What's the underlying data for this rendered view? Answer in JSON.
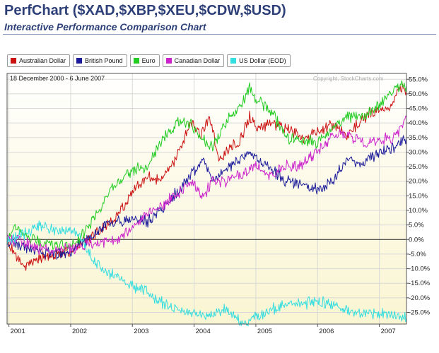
{
  "header": {
    "title": "PerfChart ($XAD,$XBP,$XEU,$CDW,$USD)",
    "subtitle": "Interactive Performance Comparison Chart"
  },
  "legend": [
    {
      "label": "Australian Dollar",
      "color": "#cc1111"
    },
    {
      "label": "British Pound",
      "color": "#1a1a9a"
    },
    {
      "label": "Euro",
      "color": "#22cc22"
    },
    {
      "label": "Canadian Dollar",
      "color": "#cc22cc"
    },
    {
      "label": "US Dollar (EOD)",
      "color": "#33dde0"
    }
  ],
  "date_range": "18 December 2000 - 6 June 2007",
  "copyright": "Copyright, StockCharts.com",
  "chart_data": {
    "type": "line",
    "ylim": [
      -29,
      57
    ],
    "xlim": [
      2000.97,
      2007.44
    ],
    "y_ticks": [
      55,
      50,
      45,
      40,
      35,
      30,
      25,
      20,
      15,
      10,
      5,
      0,
      -5,
      -10,
      -15,
      -20,
      -25
    ],
    "y_tick_labels": [
      "55.0%",
      "50.0%",
      "45.0%",
      "40.0%",
      "35.0%",
      "30.0%",
      "25.0%",
      "20.0%",
      "15.0%",
      "10.0%",
      "5.0%",
      "0.0%",
      "-5.0%",
      "-10.0%",
      "-15.0%",
      "-20.0%",
      "-25.0%"
    ],
    "x_ticks": [
      2001,
      2002,
      2003,
      2004,
      2005,
      2006,
      2007
    ],
    "x_tick_labels": [
      "2001",
      "2002",
      "2003",
      "2004",
      "2005",
      "2006",
      "2007"
    ],
    "grid": true,
    "legend_position": "top-left",
    "series": [
      {
        "name": "Australian Dollar",
        "color": "#cc1111",
        "x": [
          2000.97,
          2001.1,
          2001.25,
          2001.5,
          2001.75,
          2002.0,
          2002.25,
          2002.5,
          2002.75,
          2003.0,
          2003.25,
          2003.5,
          2003.75,
          2003.95,
          2004.1,
          2004.25,
          2004.4,
          2004.5,
          2004.75,
          2004.9,
          2005.0,
          2005.25,
          2005.5,
          2005.75,
          2006.0,
          2006.25,
          2006.5,
          2006.75,
          2007.0,
          2007.15,
          2007.3,
          2007.44
        ],
        "y": [
          0,
          -5,
          -10,
          -6,
          -5,
          -4,
          0,
          3,
          8,
          16,
          22,
          20,
          30,
          40,
          36,
          42,
          28,
          30,
          34,
          42,
          38,
          40,
          38,
          35,
          37,
          40,
          36,
          42,
          45,
          44,
          52,
          51
        ]
      },
      {
        "name": "British Pound",
        "color": "#1a1a9a",
        "x": [
          2000.97,
          2001.2,
          2001.5,
          2001.75,
          2002.0,
          2002.25,
          2002.5,
          2002.75,
          2003.0,
          2003.25,
          2003.5,
          2003.75,
          2003.95,
          2004.15,
          2004.3,
          2004.5,
          2004.75,
          2004.9,
          2005.0,
          2005.25,
          2005.5,
          2005.75,
          2006.0,
          2006.25,
          2006.5,
          2006.75,
          2007.0,
          2007.25,
          2007.44
        ],
        "y": [
          0,
          -2,
          -4,
          -5,
          -4,
          0,
          4,
          6,
          7,
          6,
          11,
          17,
          22,
          28,
          20,
          24,
          28,
          30,
          28,
          24,
          20,
          19,
          17,
          20,
          28,
          26,
          30,
          32,
          35
        ]
      },
      {
        "name": "Euro",
        "color": "#22cc22",
        "x": [
          2000.97,
          2001.1,
          2001.25,
          2001.5,
          2001.75,
          2002.0,
          2002.25,
          2002.5,
          2002.75,
          2003.0,
          2003.25,
          2003.5,
          2003.75,
          2003.95,
          2004.1,
          2004.3,
          2004.5,
          2004.75,
          2004.9,
          2005.0,
          2005.25,
          2005.5,
          2005.75,
          2006.0,
          2006.25,
          2006.5,
          2006.75,
          2007.0,
          2007.25,
          2007.44
        ],
        "y": [
          0,
          4,
          2,
          -1,
          -2,
          -2,
          3,
          12,
          20,
          24,
          25,
          35,
          40,
          40,
          35,
          32,
          40,
          46,
          52,
          48,
          44,
          35,
          34,
          33,
          39,
          42,
          42,
          46,
          52,
          53
        ]
      },
      {
        "name": "Canadian Dollar",
        "color": "#cc22cc",
        "x": [
          2000.97,
          2001.25,
          2001.5,
          2001.75,
          2002.0,
          2002.25,
          2002.5,
          2002.75,
          2003.0,
          2003.25,
          2003.5,
          2003.75,
          2003.95,
          2004.15,
          2004.3,
          2004.5,
          2004.75,
          2004.9,
          2005.0,
          2005.25,
          2005.5,
          2005.75,
          2006.0,
          2006.25,
          2006.5,
          2006.75,
          2007.0,
          2007.25,
          2007.44
        ],
        "y": [
          0,
          -1,
          -3,
          -4,
          -3,
          -2,
          -1,
          0,
          4,
          9,
          12,
          16,
          20,
          15,
          20,
          20,
          22,
          24,
          25,
          22,
          25,
          26,
          30,
          36,
          36,
          33,
          34,
          35,
          42
        ]
      },
      {
        "name": "US Dollar (EOD)",
        "color": "#33dde0",
        "x": [
          2000.97,
          2001.25,
          2001.5,
          2001.75,
          2002.0,
          2002.15,
          2002.3,
          2002.5,
          2002.75,
          2003.0,
          2003.25,
          2003.5,
          2003.75,
          2003.95,
          2004.25,
          2004.5,
          2004.75,
          2004.9,
          2005.0,
          2005.25,
          2005.5,
          2005.75,
          2006.0,
          2006.25,
          2006.5,
          2006.75,
          2007.0,
          2007.25,
          2007.44
        ],
        "y": [
          0,
          2,
          5,
          3,
          3,
          2,
          -5,
          -10,
          -13,
          -16,
          -18,
          -22,
          -24,
          -25,
          -26,
          -24,
          -28,
          -28,
          -26,
          -24,
          -22,
          -22,
          -21,
          -22,
          -25,
          -26,
          -25,
          -26,
          -27
        ]
      }
    ]
  }
}
